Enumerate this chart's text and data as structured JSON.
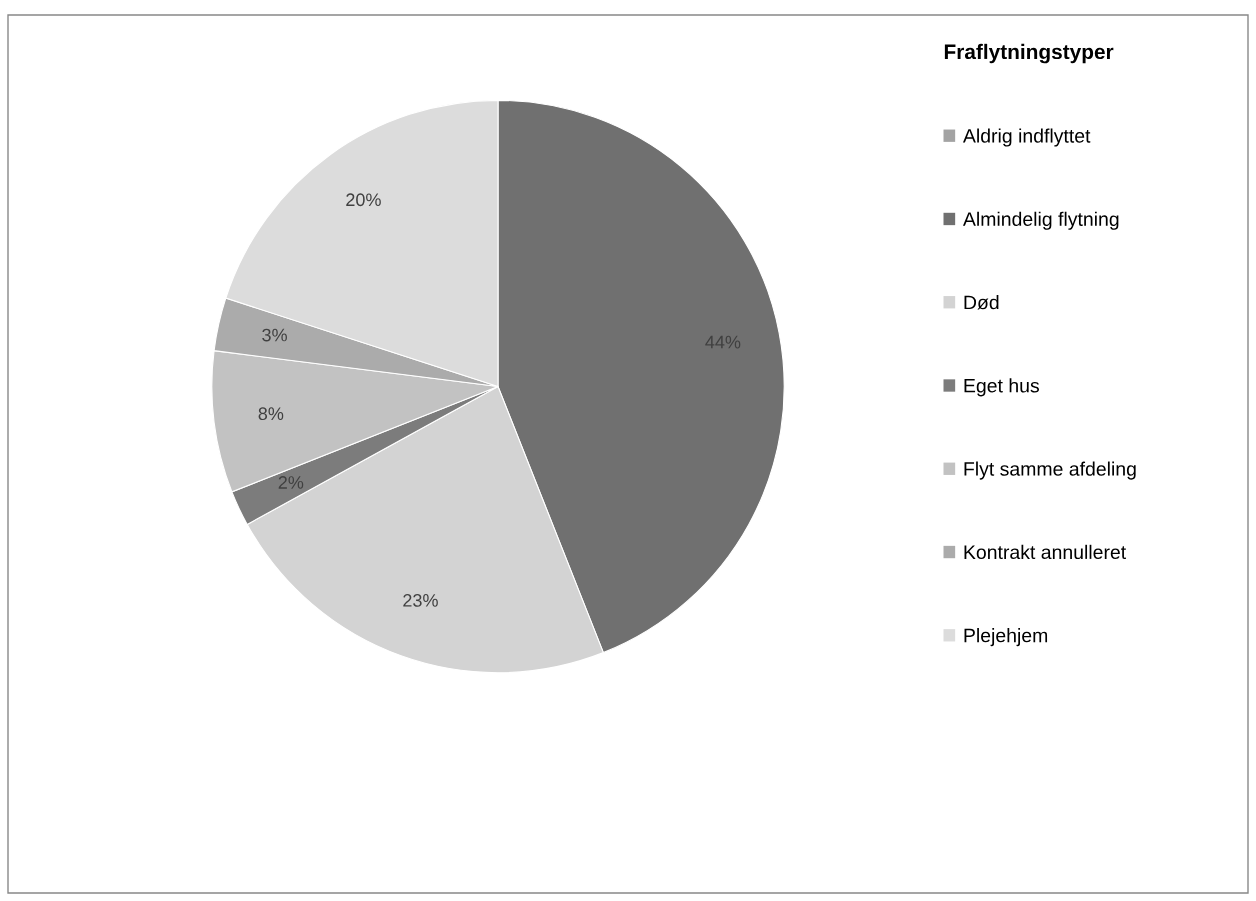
{
  "chart_data": {
    "type": "pie",
    "legend_title": "Fraflytningstyper",
    "categories": [
      "Aldrig indflyttet",
      "Almindelig flytning",
      "Død",
      "Eget hus",
      "Flyt samme afdeling",
      "Kontrakt annulleret",
      "Plejehjem"
    ],
    "values": [
      0,
      44,
      23,
      2,
      8,
      3,
      20
    ],
    "value_labels": [
      null,
      "44%",
      "23%",
      "2%",
      "8%",
      "3%",
      "20%"
    ],
    "colors": [
      "#a3a3a3",
      "#707070",
      "#d3d3d3",
      "#7c7c7c",
      "#c2c2c2",
      "#ababab",
      "#dcdcdc"
    ],
    "legend": "right"
  }
}
